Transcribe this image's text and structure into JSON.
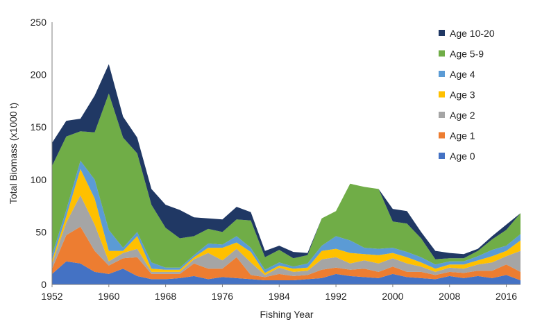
{
  "chart_data": {
    "type": "area",
    "stacked": true,
    "xlabel": "Fishing Year",
    "ylabel": "Total Biomass (x1000 t)",
    "xlim": [
      1952,
      2018
    ],
    "ylim": [
      0,
      250
    ],
    "x_ticks": [
      1952,
      1960,
      1968,
      1976,
      1984,
      1992,
      2000,
      2008,
      2016
    ],
    "y_ticks": [
      0,
      50,
      100,
      150,
      200,
      250
    ],
    "grid": false,
    "legend_position": "top-right",
    "x": [
      1952,
      1954,
      1956,
      1958,
      1960,
      1962,
      1964,
      1966,
      1968,
      1970,
      1972,
      1974,
      1976,
      1978,
      1980,
      1982,
      1984,
      1986,
      1988,
      1990,
      1992,
      1994,
      1996,
      1998,
      2000,
      2002,
      2004,
      2006,
      2008,
      2010,
      2012,
      2014,
      2016,
      2018
    ],
    "series": [
      {
        "name": "Age 0",
        "color": "#4472c4",
        "values": [
          10,
          22,
          20,
          12,
          10,
          15,
          8,
          5,
          5,
          6,
          8,
          5,
          7,
          6,
          5,
          4,
          4,
          4,
          5,
          6,
          10,
          8,
          7,
          6,
          10,
          7,
          6,
          5,
          8,
          6,
          8,
          6,
          9,
          4
        ]
      },
      {
        "name": "Age 1",
        "color": "#ed7d31",
        "values": [
          5,
          25,
          35,
          20,
          8,
          10,
          18,
          5,
          5,
          4,
          12,
          10,
          8,
          20,
          4,
          3,
          6,
          4,
          4,
          8,
          6,
          6,
          8,
          6,
          7,
          5,
          6,
          4,
          4,
          5,
          5,
          7,
          10,
          8
        ]
      },
      {
        "name": "Age 2",
        "color": "#a5a5a5",
        "values": [
          5,
          12,
          30,
          25,
          4,
          5,
          8,
          2,
          2,
          2,
          4,
          15,
          8,
          8,
          12,
          2,
          6,
          4,
          4,
          10,
          10,
          6,
          8,
          8,
          8,
          8,
          5,
          3,
          4,
          4,
          6,
          8,
          8,
          20
        ]
      },
      {
        "name": "Age 3",
        "color": "#ffc000",
        "values": [
          3,
          6,
          25,
          25,
          10,
          2,
          12,
          3,
          2,
          2,
          2,
          5,
          12,
          6,
          10,
          2,
          2,
          3,
          3,
          8,
          8,
          10,
          6,
          8,
          5,
          6,
          4,
          3,
          3,
          4,
          4,
          6,
          5,
          10
        ]
      },
      {
        "name": "Age 4",
        "color": "#5b9bd5",
        "values": [
          5,
          6,
          8,
          18,
          20,
          3,
          4,
          6,
          2,
          2,
          2,
          4,
          3,
          6,
          4,
          3,
          3,
          2,
          4,
          5,
          12,
          12,
          6,
          6,
          5,
          5,
          5,
          4,
          3,
          3,
          4,
          6,
          5,
          6
        ]
      },
      {
        "name": "Age 5-9",
        "color": "#70ad47",
        "values": [
          85,
          70,
          28,
          45,
          130,
          105,
          75,
          55,
          38,
          28,
          18,
          14,
          12,
          16,
          26,
          12,
          12,
          8,
          8,
          26,
          24,
          54,
          58,
          57,
          25,
          27,
          18,
          5,
          3,
          3,
          5,
          10,
          15,
          20
        ]
      },
      {
        "name": "Age 10-20",
        "color": "#203864",
        "values": [
          22,
          15,
          12,
          35,
          28,
          20,
          15,
          15,
          22,
          27,
          18,
          10,
          12,
          12,
          8,
          6,
          4,
          6,
          2,
          0,
          0,
          0,
          0,
          0,
          12,
          12,
          6,
          8,
          5,
          4,
          2,
          3,
          5,
          0
        ]
      }
    ]
  }
}
